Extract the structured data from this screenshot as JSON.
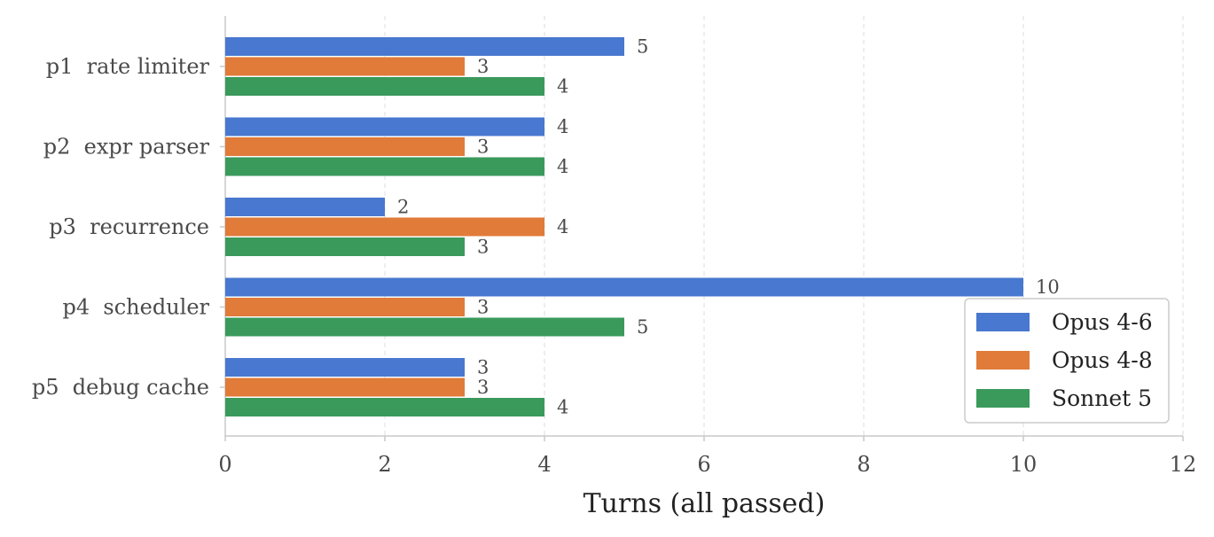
{
  "chart_data": {
    "type": "bar",
    "orientation": "horizontal",
    "title": "",
    "xlabel": "Turns (all passed)",
    "ylabel": "",
    "xlim": [
      0,
      12
    ],
    "xticks": [
      0,
      2,
      4,
      6,
      8,
      10,
      12
    ],
    "grid": true,
    "legend_position": "lower-right",
    "categories": [
      "p1  rate limiter",
      "p2  expr parser",
      "p3  recurrence",
      "p4  scheduler",
      "p5  debug cache"
    ],
    "series": [
      {
        "name": "Opus 4-6",
        "color": "#4878cf",
        "values": [
          5,
          4,
          2,
          10,
          3
        ]
      },
      {
        "name": "Opus 4-8",
        "color": "#e07b39",
        "values": [
          3,
          3,
          4,
          3,
          3
        ]
      },
      {
        "name": "Sonnet 5",
        "color": "#3a9a5b",
        "values": [
          4,
          4,
          3,
          5,
          4
        ]
      }
    ]
  }
}
